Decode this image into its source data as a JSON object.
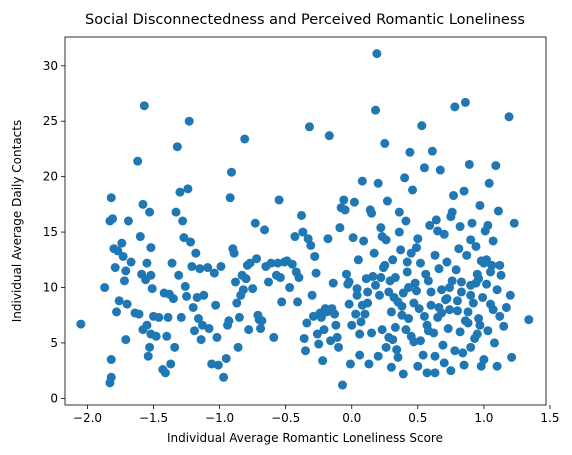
{
  "chart_data": {
    "type": "scatter",
    "title": "Social Disconnectedness and Perceived Romantic Loneliness",
    "xlabel": "Individual Average Romantic Loneliness Score",
    "ylabel": "Individual Average Daily Contacts",
    "xlim": [
      -2.17,
      1.47
    ],
    "ylim": [
      -0.6,
      32.6
    ],
    "xticks": [
      -2.0,
      -1.5,
      -1.0,
      -0.5,
      0.0,
      0.5,
      1.0,
      1.5
    ],
    "xtick_labels": [
      "−2.0",
      "−1.5",
      "−1.0",
      "−0.5",
      "0.0",
      "0.5",
      "1.0",
      "1.5"
    ],
    "yticks": [
      0,
      5,
      10,
      15,
      20,
      25,
      30
    ],
    "ytick_labels": [
      "0",
      "5",
      "10",
      "15",
      "20",
      "25",
      "30"
    ],
    "grid": false,
    "marker_color": "#1f77b4",
    "points": [
      [
        -2.05,
        6.7
      ],
      [
        -1.87,
        10.0
      ],
      [
        -1.83,
        16.0
      ],
      [
        -1.82,
        18.1
      ],
      [
        -1.81,
        16.2
      ],
      [
        -1.82,
        3.5
      ],
      [
        -1.82,
        1.9
      ],
      [
        -1.83,
        1.4
      ],
      [
        -1.8,
        13.5
      ],
      [
        -1.79,
        11.8
      ],
      [
        -1.78,
        7.8
      ],
      [
        -1.77,
        13.3
      ],
      [
        -1.76,
        8.8
      ],
      [
        -1.74,
        14.0
      ],
      [
        -1.73,
        12.8
      ],
      [
        -1.72,
        10.6
      ],
      [
        -1.71,
        11.5
      ],
      [
        -1.7,
        8.5
      ],
      [
        -1.71,
        5.3
      ],
      [
        -1.69,
        16.0
      ],
      [
        -1.67,
        12.3
      ],
      [
        -1.64,
        7.7
      ],
      [
        -1.62,
        21.4
      ],
      [
        -1.61,
        7.6
      ],
      [
        -1.6,
        14.6
      ],
      [
        -1.59,
        11.2
      ],
      [
        -1.58,
        17.5
      ],
      [
        -1.57,
        26.4
      ],
      [
        -1.56,
        10.7
      ],
      [
        -1.55,
        6.6
      ],
      [
        -1.54,
        3.8
      ],
      [
        -1.53,
        16.8
      ],
      [
        -1.52,
        13.6
      ],
      [
        -1.51,
        9.9
      ],
      [
        -1.5,
        7.4
      ],
      [
        -1.52,
        5.8
      ],
      [
        -1.53,
        4.6
      ],
      [
        -1.55,
        12.2
      ],
      [
        -1.52,
        11.1
      ],
      [
        -1.58,
        6.2
      ],
      [
        -1.48,
        5.6
      ],
      [
        -1.46,
        7.3
      ],
      [
        -1.43,
        2.6
      ],
      [
        -1.42,
        9.5
      ],
      [
        -1.41,
        2.3
      ],
      [
        -1.4,
        5.6
      ],
      [
        -1.39,
        7.3
      ],
      [
        -1.38,
        9.4
      ],
      [
        -1.37,
        3.1
      ],
      [
        -1.36,
        12.2
      ],
      [
        -1.35,
        9.0
      ],
      [
        -1.34,
        4.6
      ],
      [
        -1.33,
        16.8
      ],
      [
        -1.32,
        22.7
      ],
      [
        -1.31,
        11.1
      ],
      [
        -1.3,
        18.6
      ],
      [
        -1.29,
        7.3
      ],
      [
        -1.28,
        16.0
      ],
      [
        -1.27,
        14.5
      ],
      [
        -1.26,
        10.1
      ],
      [
        -1.25,
        9.2
      ],
      [
        -1.24,
        18.9
      ],
      [
        -1.23,
        25.0
      ],
      [
        -1.22,
        14.1
      ],
      [
        -1.21,
        11.9
      ],
      [
        -1.2,
        8.2
      ],
      [
        -1.19,
        6.1
      ],
      [
        -1.18,
        13.1
      ],
      [
        -1.17,
        9.1
      ],
      [
        -1.16,
        7.2
      ],
      [
        -1.15,
        11.7
      ],
      [
        -1.14,
        5.3
      ],
      [
        -1.13,
        6.6
      ],
      [
        -1.12,
        9.3
      ],
      [
        -1.09,
        11.8
      ],
      [
        -1.08,
        6.3
      ],
      [
        -1.06,
        3.1
      ],
      [
        -1.04,
        11.3
      ],
      [
        -1.03,
        8.4
      ],
      [
        -1.02,
        5.5
      ],
      [
        -1.01,
        3.0
      ],
      [
        -0.99,
        11.9
      ],
      [
        -0.97,
        1.9
      ],
      [
        -0.95,
        3.6
      ],
      [
        -0.94,
        6.6
      ],
      [
        -0.93,
        7.0
      ],
      [
        -0.92,
        18.1
      ],
      [
        -0.91,
        20.4
      ],
      [
        -0.9,
        13.5
      ],
      [
        -0.89,
        13.1
      ],
      [
        -0.88,
        10.5
      ],
      [
        -0.87,
        8.6
      ],
      [
        -0.86,
        4.6
      ],
      [
        -0.85,
        7.3
      ],
      [
        -0.84,
        9.3
      ],
      [
        -0.83,
        11.1
      ],
      [
        -0.82,
        9.8
      ],
      [
        -0.81,
        23.4
      ],
      [
        -0.8,
        10.8
      ],
      [
        -0.79,
        12.0
      ],
      [
        -0.78,
        6.2
      ],
      [
        -0.77,
        12.2
      ],
      [
        -0.75,
        9.9
      ],
      [
        -0.73,
        15.8
      ],
      [
        -0.72,
        12.6
      ],
      [
        -0.71,
        7.5
      ],
      [
        -0.7,
        7.1
      ],
      [
        -0.69,
        6.3
      ],
      [
        -0.68,
        7.0
      ],
      [
        -0.66,
        15.2
      ],
      [
        -0.65,
        11.9
      ],
      [
        -0.63,
        10.5
      ],
      [
        -0.61,
        12.2
      ],
      [
        -0.59,
        5.5
      ],
      [
        -0.57,
        11.1
      ],
      [
        -0.56,
        12.2
      ],
      [
        -0.55,
        17.9
      ],
      [
        -0.54,
        10.9
      ],
      [
        -0.53,
        8.7
      ],
      [
        -0.51,
        12.3
      ],
      [
        -0.49,
        12.4
      ],
      [
        -0.47,
        10.0
      ],
      [
        -0.45,
        12.1
      ],
      [
        -0.43,
        14.6
      ],
      [
        -0.42,
        11.4
      ],
      [
        -0.41,
        8.7
      ],
      [
        -0.4,
        10.9
      ],
      [
        -0.38,
        16.5
      ],
      [
        -0.37,
        15.0
      ],
      [
        -0.36,
        5.4
      ],
      [
        -0.35,
        4.3
      ],
      [
        -0.34,
        6.8
      ],
      [
        -0.33,
        14.4
      ],
      [
        -0.32,
        24.5
      ],
      [
        -0.31,
        13.8
      ],
      [
        -0.3,
        9.3
      ],
      [
        -0.29,
        7.4
      ],
      [
        -0.28,
        12.8
      ],
      [
        -0.27,
        11.3
      ],
      [
        -0.26,
        5.8
      ],
      [
        -0.25,
        4.9
      ],
      [
        -0.24,
        7.7
      ],
      [
        -0.23,
        7.3
      ],
      [
        -0.22,
        3.4
      ],
      [
        -0.21,
        6.2
      ],
      [
        -0.2,
        8.1
      ],
      [
        -0.19,
        7.8
      ],
      [
        -0.18,
        14.4
      ],
      [
        -0.17,
        23.7
      ],
      [
        -0.16,
        5.2
      ],
      [
        -0.15,
        8.1
      ],
      [
        -0.14,
        10.4
      ],
      [
        -0.13,
        7.6
      ],
      [
        -0.12,
        6.6
      ],
      [
        -0.11,
        5.5
      ],
      [
        -0.1,
        4.6
      ],
      [
        -0.09,
        15.4
      ],
      [
        -0.08,
        17.2
      ],
      [
        -0.07,
        1.2
      ],
      [
        -0.06,
        17.9
      ],
      [
        -0.05,
        17.0
      ],
      [
        -0.04,
        11.2
      ],
      [
        -0.03,
        10.3
      ],
      [
        -0.02,
        8.5
      ],
      [
        -0.01,
        3.1
      ],
      [
        0.0,
        6.6
      ],
      [
        0.01,
        14.5
      ],
      [
        0.02,
        17.7
      ],
      [
        0.03,
        7.6
      ],
      [
        0.04,
        9.9
      ],
      [
        0.05,
        12.5
      ],
      [
        0.06,
        5.8
      ],
      [
        0.07,
        6.9
      ],
      [
        0.08,
        19.6
      ],
      [
        0.09,
        14.2
      ],
      [
        0.1,
        7.6
      ],
      [
        0.11,
        10.8
      ],
      [
        0.12,
        8.6
      ],
      [
        0.13,
        3.1
      ],
      [
        0.14,
        17.0
      ],
      [
        0.15,
        16.7
      ],
      [
        0.16,
        11.0
      ],
      [
        0.17,
        13.1
      ],
      [
        0.18,
        26.0
      ],
      [
        0.19,
        31.1
      ],
      [
        0.2,
        19.4
      ],
      [
        0.21,
        9.3
      ],
      [
        0.22,
        15.4
      ],
      [
        0.23,
        6.2
      ],
      [
        0.24,
        11.8
      ],
      [
        0.25,
        23.0
      ],
      [
        0.26,
        14.3
      ],
      [
        0.27,
        17.8
      ],
      [
        0.28,
        5.5
      ],
      [
        0.29,
        10.6
      ],
      [
        0.3,
        7.8
      ],
      [
        0.31,
        12.5
      ],
      [
        0.32,
        9.1
      ],
      [
        0.33,
        6.4
      ],
      [
        0.34,
        4.4
      ],
      [
        0.35,
        8.7
      ],
      [
        0.36,
        16.8
      ],
      [
        0.37,
        13.4
      ],
      [
        0.38,
        7.5
      ],
      [
        0.39,
        9.5
      ],
      [
        0.4,
        19.9
      ],
      [
        0.41,
        16.0
      ],
      [
        0.42,
        11.4
      ],
      [
        0.43,
        7.2
      ],
      [
        0.44,
        22.2
      ],
      [
        0.45,
        13.1
      ],
      [
        0.46,
        18.8
      ],
      [
        0.47,
        5.1
      ],
      [
        0.48,
        10.4
      ],
      [
        0.49,
        9.7
      ],
      [
        0.5,
        14.4
      ],
      [
        0.51,
        8.1
      ],
      [
        0.52,
        12.2
      ],
      [
        0.53,
        24.6
      ],
      [
        0.54,
        3.9
      ],
      [
        0.55,
        20.8
      ],
      [
        0.56,
        11.2
      ],
      [
        0.57,
        6.6
      ],
      [
        0.58,
        10.6
      ],
      [
        0.59,
        15.6
      ],
      [
        0.6,
        8.4
      ],
      [
        0.61,
        22.3
      ],
      [
        0.62,
        5.9
      ],
      [
        0.63,
        12.9
      ],
      [
        0.64,
        16.1
      ],
      [
        0.65,
        7.3
      ],
      [
        0.66,
        11.7
      ],
      [
        0.67,
        20.6
      ],
      [
        0.68,
        9.8
      ],
      [
        0.69,
        4.8
      ],
      [
        0.7,
        14.8
      ],
      [
        0.71,
        8.9
      ],
      [
        0.72,
        12.3
      ],
      [
        0.73,
        6.3
      ],
      [
        0.74,
        10.0
      ],
      [
        0.75,
        2.5
      ],
      [
        0.76,
        16.8
      ],
      [
        0.77,
        18.3
      ],
      [
        0.78,
        26.3
      ],
      [
        0.79,
        11.6
      ],
      [
        0.8,
        7.9
      ],
      [
        0.81,
        13.5
      ],
      [
        0.82,
        15.5
      ],
      [
        0.83,
        9.6
      ],
      [
        0.84,
        4.1
      ],
      [
        0.85,
        18.7
      ],
      [
        0.86,
        26.7
      ],
      [
        0.87,
        12.9
      ],
      [
        0.88,
        6.8
      ],
      [
        0.89,
        21.1
      ],
      [
        0.9,
        10.2
      ],
      [
        0.91,
        15.8
      ],
      [
        0.92,
        8.6
      ],
      [
        0.93,
        5.4
      ],
      [
        0.94,
        13.7
      ],
      [
        0.95,
        11.2
      ],
      [
        0.96,
        7.2
      ],
      [
        0.97,
        17.4
      ],
      [
        0.98,
        12.4
      ],
      [
        0.99,
        9.1
      ],
      [
        1.0,
        3.5
      ],
      [
        1.01,
        15.1
      ],
      [
        1.02,
        10.3
      ],
      [
        1.03,
        6.1
      ],
      [
        1.04,
        19.4
      ],
      [
        1.05,
        8.5
      ],
      [
        1.06,
        12.0
      ],
      [
        1.07,
        14.2
      ],
      [
        1.08,
        5.0
      ],
      [
        1.09,
        21.0
      ],
      [
        1.1,
        9.8
      ],
      [
        1.11,
        16.9
      ],
      [
        1.12,
        7.4
      ],
      [
        1.13,
        11.1
      ],
      [
        1.15,
        6.5
      ],
      [
        1.17,
        8.2
      ],
      [
        1.19,
        25.4
      ],
      [
        1.2,
        9.3
      ],
      [
        1.21,
        3.7
      ],
      [
        1.23,
        15.8
      ],
      [
        1.34,
        7.1
      ],
      [
        0.83,
        10.5
      ],
      [
        0.86,
        7.0
      ],
      [
        0.9,
        9.3
      ],
      [
        0.96,
        10.8
      ],
      [
        1.02,
        12.5
      ],
      [
        1.05,
        11.4
      ],
      [
        0.8,
        8.8
      ],
      [
        0.72,
        9.0
      ],
      [
        0.66,
        8.2
      ],
      [
        0.6,
        9.6
      ],
      [
        0.55,
        7.4
      ],
      [
        0.47,
        8.6
      ],
      [
        0.43,
        10.0
      ],
      [
        0.38,
        8.3
      ],
      [
        0.33,
        10.9
      ],
      [
        0.28,
        9.6
      ],
      [
        0.25,
        12.0
      ],
      [
        0.22,
        10.9
      ],
      [
        0.18,
        10.2
      ],
      [
        0.12,
        9.6
      ],
      [
        0.08,
        8.4
      ],
      [
        0.04,
        9.3
      ],
      [
        -0.02,
        10.5
      ],
      [
        0.95,
        5.8
      ],
      [
        0.9,
        4.6
      ],
      [
        0.85,
        3.0
      ],
      [
        0.78,
        4.3
      ],
      [
        0.7,
        3.2
      ],
      [
        0.63,
        3.8
      ],
      [
        0.57,
        2.3
      ],
      [
        0.5,
        2.9
      ],
      [
        0.45,
        5.6
      ],
      [
        0.39,
        2.2
      ],
      [
        0.35,
        3.7
      ],
      [
        0.3,
        2.8
      ],
      [
        0.63,
        2.3
      ],
      [
        1.1,
        2.9
      ],
      [
        0.98,
        2.9
      ],
      [
        0.58,
        6.1
      ],
      [
        0.52,
        5.2
      ],
      [
        0.68,
        7.7
      ],
      [
        0.74,
        8.0
      ],
      [
        0.82,
        6.0
      ],
      [
        0.88,
        7.8
      ],
      [
        0.97,
        6.6
      ],
      [
        1.07,
        8.0
      ],
      [
        1.12,
        12.0
      ],
      [
        1.0,
        12.2
      ],
      [
        0.94,
        10.4
      ],
      [
        0.76,
        10.6
      ],
      [
        0.41,
        6.2
      ],
      [
        0.31,
        5.3
      ],
      [
        0.15,
        5.9
      ],
      [
        0.2,
        3.8
      ],
      [
        0.26,
        4.6
      ],
      [
        0.06,
        3.9
      ],
      [
        0.42,
        12.3
      ],
      [
        0.36,
        15.0
      ],
      [
        0.49,
        13.6
      ],
      [
        0.23,
        14.6
      ],
      [
        1.03,
        15.6
      ],
      [
        0.9,
        14.3
      ],
      [
        0.75,
        16.4
      ],
      [
        0.65,
        15.1
      ]
    ]
  }
}
